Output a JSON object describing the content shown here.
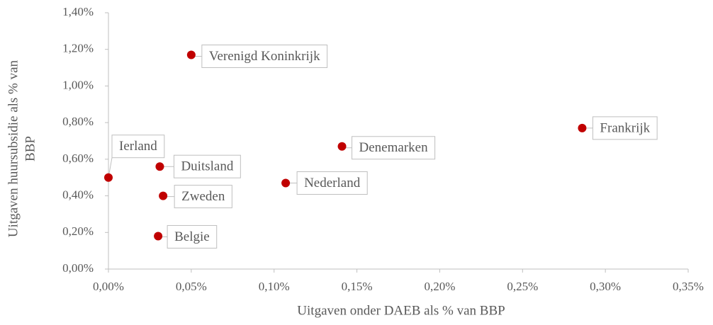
{
  "chart_data": {
    "type": "scatter",
    "x_label": "Uitgaven onder DAEB als % van BBP",
    "y_label": [
      "Uitgaven huursubsidie als % van",
      "BBP"
    ],
    "labels": [
      "Verenigd Koninkrijk",
      "Frankrijk",
      "Denemarken",
      "Nederland",
      "Ierland",
      "Duitsland",
      "Zweden",
      "Belgie"
    ],
    "x": [
      0.05,
      0.286,
      0.141,
      0.107,
      0.0,
      0.031,
      0.033,
      0.03
    ],
    "values": [
      1.17,
      0.77,
      0.67,
      0.47,
      0.5,
      0.56,
      0.4,
      0.18
    ],
    "color": "#c00000",
    "xlim": [
      0,
      0.35
    ],
    "xticks": [
      {
        "value": 0,
        "label": "0,00%"
      },
      {
        "value": 0.05,
        "label": "0,05%"
      },
      {
        "value": 0.1,
        "label": "0,10%"
      },
      {
        "value": 0.15,
        "label": "0,15%"
      },
      {
        "value": 0.2,
        "label": "0,20%"
      },
      {
        "value": 0.25,
        "label": "0,25%"
      },
      {
        "value": 0.3,
        "label": "0,30%"
      },
      {
        "value": 0.35,
        "label": "0,35%"
      }
    ],
    "ylim": [
      0,
      1.4
    ],
    "yticks": [
      {
        "value": 0,
        "label": "0,00%"
      },
      {
        "value": 0.2,
        "label": "0,20%"
      },
      {
        "value": 0.4,
        "label": "0,40%"
      },
      {
        "value": 0.6,
        "label": "0,60%"
      },
      {
        "value": 0.8,
        "label": "0,80%"
      },
      {
        "value": 1.0,
        "label": "1,00%"
      },
      {
        "value": 1.2,
        "label": "1,20%"
      },
      {
        "value": 1.4,
        "label": "1,40%"
      }
    ],
    "grid": false
  }
}
